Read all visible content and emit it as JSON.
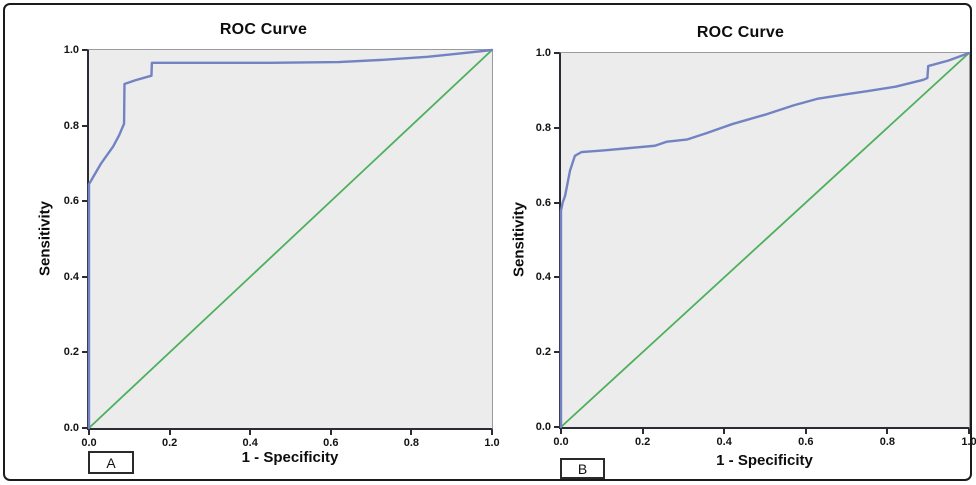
{
  "figure": {
    "background": "#ffffff",
    "border_color": "#1b1b1b",
    "plot_background": "#ececec",
    "axis_color": "#2b2b35",
    "frame_color": "#9b9b9b"
  },
  "chart_data": [
    {
      "type": "line",
      "title": "ROC Curve",
      "xlabel": "1 - Specificity",
      "ylabel": "Sensitivity",
      "panel_label": "A",
      "xlim": [
        0.0,
        1.0
      ],
      "ylim": [
        0.0,
        1.0
      ],
      "grid": false,
      "legend": "none",
      "x_ticks": [
        0.0,
        0.2,
        0.4,
        0.6,
        0.8,
        1.0
      ],
      "y_ticks": [
        0.0,
        0.2,
        0.4,
        0.6,
        0.8,
        1.0
      ],
      "x_tick_labels": [
        "0.0",
        "0.2",
        "0.4",
        "0.6",
        "0.8",
        "1.0"
      ],
      "y_tick_labels": [
        "0.0",
        "0.2",
        "0.4",
        "0.6",
        "0.8",
        "1.0"
      ],
      "series": [
        {
          "name": "Reference line",
          "color": "#4cb05c",
          "stroke_width": 1.8,
          "points": [
            [
              0.0,
              0.0
            ],
            [
              1.0,
              1.0
            ]
          ]
        },
        {
          "name": "ROC curve",
          "color": "#7283c3",
          "stroke_width": 2.4,
          "points": [
            [
              0.0,
              0.0
            ],
            [
              0.0,
              0.645
            ],
            [
              0.012,
              0.667
            ],
            [
              0.03,
              0.7
            ],
            [
              0.06,
              0.745
            ],
            [
              0.075,
              0.775
            ],
            [
              0.087,
              0.805
            ],
            [
              0.088,
              0.91
            ],
            [
              0.115,
              0.92
            ],
            [
              0.155,
              0.932
            ],
            [
              0.156,
              0.966
            ],
            [
              0.45,
              0.966
            ],
            [
              0.62,
              0.968
            ],
            [
              0.73,
              0.974
            ],
            [
              0.84,
              0.982
            ],
            [
              0.93,
              0.992
            ],
            [
              1.0,
              1.0
            ]
          ]
        }
      ]
    },
    {
      "type": "line",
      "title": "ROC Curve",
      "xlabel": "1 - Specificity",
      "ylabel": "Sensitivity",
      "panel_label": "B",
      "xlim": [
        0.0,
        1.0
      ],
      "ylim": [
        0.0,
        1.0
      ],
      "grid": false,
      "legend": "none",
      "x_ticks": [
        0.0,
        0.2,
        0.4,
        0.6,
        0.8,
        1.0
      ],
      "y_ticks": [
        0.0,
        0.2,
        0.4,
        0.6,
        0.8,
        1.0
      ],
      "x_tick_labels": [
        "0.0",
        "0.2",
        "0.4",
        "0.6",
        "0.8",
        "1.0"
      ],
      "y_tick_labels": [
        "0.0",
        "0.2",
        "0.4",
        "0.6",
        "0.8",
        "1.0"
      ],
      "series": [
        {
          "name": "Reference line",
          "color": "#4cb05c",
          "stroke_width": 1.8,
          "points": [
            [
              0.0,
              0.0
            ],
            [
              1.0,
              1.0
            ]
          ]
        },
        {
          "name": "ROC curve",
          "color": "#7283c3",
          "stroke_width": 2.4,
          "points": [
            [
              0.0,
              0.0
            ],
            [
              0.0,
              0.578
            ],
            [
              0.004,
              0.6
            ],
            [
              0.01,
              0.618
            ],
            [
              0.022,
              0.685
            ],
            [
              0.034,
              0.725
            ],
            [
              0.05,
              0.735
            ],
            [
              0.1,
              0.739
            ],
            [
              0.16,
              0.745
            ],
            [
              0.23,
              0.752
            ],
            [
              0.26,
              0.763
            ],
            [
              0.31,
              0.769
            ],
            [
              0.355,
              0.785
            ],
            [
              0.42,
              0.81
            ],
            [
              0.5,
              0.835
            ],
            [
              0.57,
              0.86
            ],
            [
              0.63,
              0.878
            ],
            [
              0.7,
              0.89
            ],
            [
              0.75,
              0.898
            ],
            [
              0.82,
              0.91
            ],
            [
              0.887,
              0.928
            ],
            [
              0.898,
              0.933
            ],
            [
              0.9,
              0.965
            ],
            [
              0.95,
              0.98
            ],
            [
              1.0,
              1.0
            ]
          ]
        }
      ]
    }
  ]
}
